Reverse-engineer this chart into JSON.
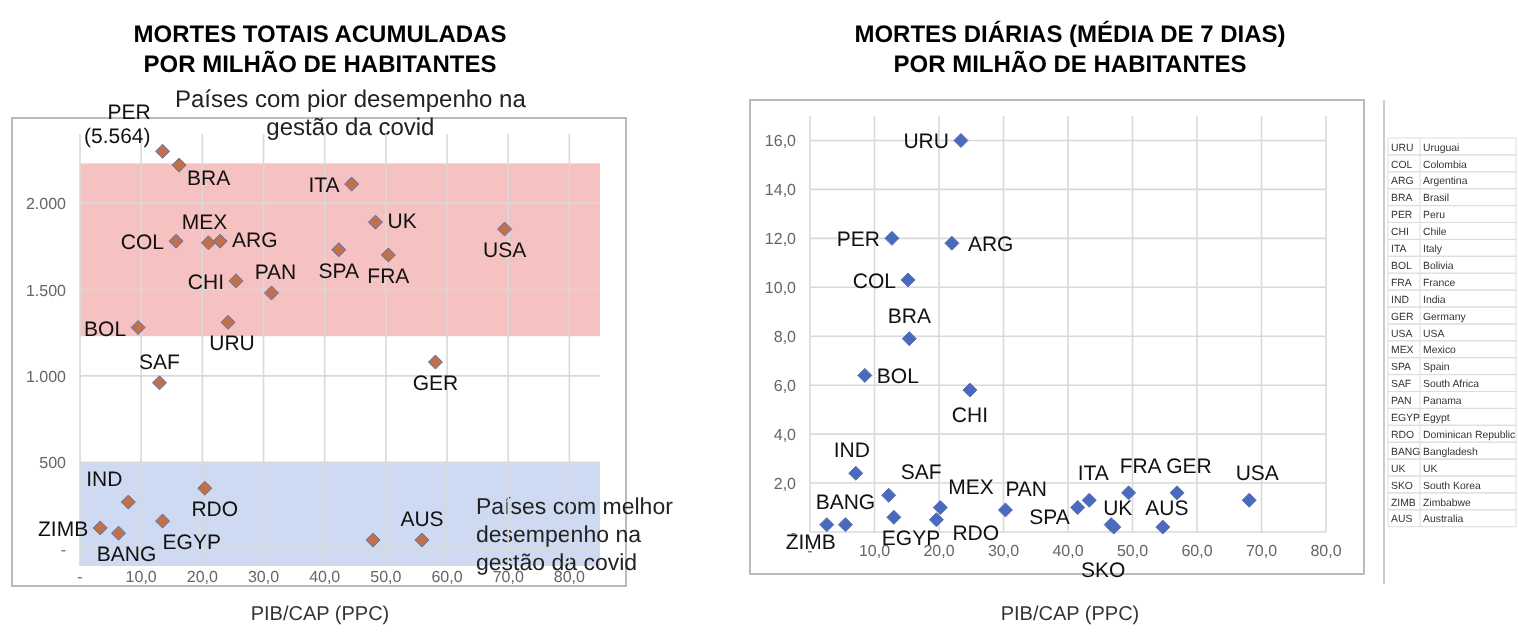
{
  "chart_data": [
    {
      "type": "scatter",
      "title": "MORTES TOTAIS ACUMULADAS POR MILHÃO DE HABITANTES",
      "xlabel": "PIB/CAP (PPC)",
      "marker": "diamond",
      "grid": true,
      "xlim": [
        0,
        85
      ],
      "ylim": [
        -100,
        2400
      ],
      "xticks": [
        {
          "value": 0,
          "label": "-"
        },
        {
          "value": 10,
          "label": "10,0"
        },
        {
          "value": 20,
          "label": "20,0"
        },
        {
          "value": 30,
          "label": "30,0"
        },
        {
          "value": 40,
          "label": "40,0"
        },
        {
          "value": 50,
          "label": "50,0"
        },
        {
          "value": 60,
          "label": "60,0"
        },
        {
          "value": 70,
          "label": "70,0"
        },
        {
          "value": 80,
          "label": "80,0"
        }
      ],
      "yticks": [
        {
          "value": 0,
          "label": "-"
        },
        500,
        {
          "value": 1000,
          "label": "1.000"
        },
        {
          "value": 1500,
          "label": "1.500"
        },
        {
          "value": 2000,
          "label": "2.000"
        }
      ],
      "bands": [
        {
          "axis": "y",
          "from": 1230,
          "to": 2230,
          "label": "Países com pior desempenho na gestão da covid",
          "color": "#f4b6b6"
        },
        {
          "axis": "y",
          "from": -100,
          "to": 500,
          "label": "Países com melhor desempenho na gestão da covid",
          "color": "#c5d3ee"
        }
      ],
      "series": [
        {
          "color": "#c0704a",
          "x": [
            13.5,
            16.2,
            44.4,
            48.3,
            69.4,
            15.7,
            21.0,
            22.9,
            42.3,
            50.4,
            25.5,
            31.3,
            9.5,
            24.2,
            13.0,
            58.1,
            7.9,
            20.4,
            3.3,
            6.3,
            13.5,
            55.9,
            47.9
          ],
          "values": [
            2300,
            2220,
            2110,
            1890,
            1850,
            1780,
            1770,
            1780,
            1730,
            1700,
            1550,
            1480,
            1280,
            1310,
            960,
            1080,
            270,
            350,
            120,
            90,
            160,
            50,
            50
          ]
        }
      ],
      "annotations": [
        {
          "text": "PER (5.564)",
          "x": 13.5,
          "y": 2300
        },
        {
          "text": "BRA",
          "x": 16.2,
          "y": 2220
        },
        {
          "text": "ITA",
          "x": 44.4,
          "y": 2110
        },
        {
          "text": "UK",
          "x": 48.3,
          "y": 1890
        },
        {
          "text": "USA",
          "x": 69.4,
          "y": 1850
        },
        {
          "text": "COL",
          "x": 15.7,
          "y": 1780
        },
        {
          "text": "MEX",
          "x": 21.0,
          "y": 1770
        },
        {
          "text": "ARG",
          "x": 22.9,
          "y": 1780
        },
        {
          "text": "SPA",
          "x": 42.3,
          "y": 1730
        },
        {
          "text": "FRA",
          "x": 50.4,
          "y": 1700
        },
        {
          "text": "CHI",
          "x": 25.5,
          "y": 1550
        },
        {
          "text": "PAN",
          "x": 31.3,
          "y": 1480
        },
        {
          "text": "BOL",
          "x": 9.5,
          "y": 1280
        },
        {
          "text": "URU",
          "x": 24.2,
          "y": 1310
        },
        {
          "text": "SAF",
          "x": 13.0,
          "y": 960
        },
        {
          "text": "GER",
          "x": 58.1,
          "y": 1080
        },
        {
          "text": "IND",
          "x": 7.9,
          "y": 270
        },
        {
          "text": "RDO",
          "x": 20.4,
          "y": 350
        },
        {
          "text": "ZIMB",
          "x": 3.3,
          "y": 120
        },
        {
          "text": "BANG",
          "x": 6.3,
          "y": 90
        },
        {
          "text": "EGYP",
          "x": 13.5,
          "y": 160
        },
        {
          "text": "AUS",
          "x": 55.9,
          "y": 50
        }
      ]
    },
    {
      "type": "scatter",
      "title": "MORTES DIÁRIAS (MÉDIA DE 7 DIAS) POR MILHÃO DE HABITANTES",
      "xlabel": "PIB/CAP (PPC)",
      "marker": "diamond",
      "grid": true,
      "xlim": [
        0,
        80
      ],
      "ylim": [
        0,
        17
      ],
      "xticks": [
        {
          "value": 0,
          "label": "-"
        },
        {
          "value": 10,
          "label": "10,0"
        },
        {
          "value": 20,
          "label": "20,0"
        },
        {
          "value": 30,
          "label": "30,0"
        },
        {
          "value": 40,
          "label": "40,0"
        },
        {
          "value": 50,
          "label": "50,0"
        },
        {
          "value": 60,
          "label": "60,0"
        },
        {
          "value": 70,
          "label": "70,0"
        },
        {
          "value": 80,
          "label": "80,0"
        }
      ],
      "yticks": [
        {
          "value": 0,
          "label": "-"
        },
        {
          "value": 2,
          "label": "2,0"
        },
        {
          "value": 4,
          "label": "4,0"
        },
        {
          "value": 6,
          "label": "6,0"
        },
        {
          "value": 8,
          "label": "8,0"
        },
        {
          "value": 10,
          "label": "10,0"
        },
        {
          "value": 12,
          "label": "12,0"
        },
        {
          "value": 14,
          "label": "14,0"
        },
        {
          "value": 16,
          "label": "16,0"
        }
      ],
      "series": [
        {
          "color": "#4a6ac0",
          "x": [
            23.4,
            12.7,
            22.0,
            15.2,
            15.4,
            8.5,
            24.8,
            7.1,
            12.2,
            20.2,
            30.3,
            13.0,
            19.6,
            5.5,
            2.6,
            41.5,
            43.3,
            49.4,
            56.9,
            68.1,
            47.1,
            46.7,
            54.7
          ],
          "values": [
            16.0,
            12.0,
            11.8,
            10.3,
            7.9,
            6.4,
            5.8,
            2.4,
            1.5,
            1.0,
            0.9,
            0.6,
            0.5,
            0.3,
            0.3,
            1.0,
            1.3,
            1.6,
            1.6,
            1.3,
            0.2,
            0.3,
            0.2
          ]
        }
      ],
      "annotations": [
        {
          "text": "URU",
          "x": 23.4,
          "y": 16.0
        },
        {
          "text": "PER",
          "x": 12.7,
          "y": 12.0
        },
        {
          "text": "ARG",
          "x": 22.0,
          "y": 11.8
        },
        {
          "text": "COL",
          "x": 15.2,
          "y": 10.3
        },
        {
          "text": "BRA",
          "x": 15.4,
          "y": 7.9
        },
        {
          "text": "BOL",
          "x": 8.5,
          "y": 6.4
        },
        {
          "text": "CHI",
          "x": 24.8,
          "y": 5.8
        },
        {
          "text": "IND",
          "x": 7.1,
          "y": 2.4
        },
        {
          "text": "SAF",
          "x": 12.2,
          "y": 1.5
        },
        {
          "text": "MEX",
          "x": 20.2,
          "y": 1.0
        },
        {
          "text": "PAN",
          "x": 30.3,
          "y": 0.9
        },
        {
          "text": "EGYP",
          "x": 13.0,
          "y": 0.6
        },
        {
          "text": "RDO",
          "x": 19.6,
          "y": 0.5
        },
        {
          "text": "BANG",
          "x": 5.5,
          "y": 0.3
        },
        {
          "text": "ZIMB",
          "x": 2.6,
          "y": 0.3
        },
        {
          "text": "SPA",
          "x": 41.5,
          "y": 1.0
        },
        {
          "text": "ITA",
          "x": 43.3,
          "y": 1.3
        },
        {
          "text": "FRA",
          "x": 49.4,
          "y": 1.6
        },
        {
          "text": "GER",
          "x": 56.9,
          "y": 1.6
        },
        {
          "text": "USA",
          "x": 68.1,
          "y": 1.3
        },
        {
          "text": "UK",
          "x": 47.1,
          "y": 0.2
        },
        {
          "text": "SKO",
          "x": 46.7,
          "y": 0.3
        },
        {
          "text": "AUS",
          "x": 54.7,
          "y": 0.2
        }
      ]
    },
    {
      "type": "other",
      "annotations": [
        "URU",
        "Uruguai",
        "COL",
        "Colombia",
        "ARG",
        "Argentina",
        "BRA",
        "Brasil",
        "PER",
        "Peru",
        "CHI",
        "Chile",
        "ITA",
        "Italy",
        "BOL",
        "Bolivia",
        "FRA",
        "France",
        "IND",
        "India",
        "GER",
        "Germany",
        "USA",
        "USA",
        "MEX",
        "Mexico",
        "SPA",
        "Spain",
        "SAF",
        "South Africa",
        "PAN",
        "Panama",
        "EGYP",
        "Egypt",
        "RDO",
        "Dominican Republic",
        "BANG",
        "Bangladesh",
        "UK",
        "UK",
        "SKO",
        "South Korea",
        "ZIMB",
        "Zimbabwe",
        "AUS",
        "Australia"
      ]
    }
  ]
}
